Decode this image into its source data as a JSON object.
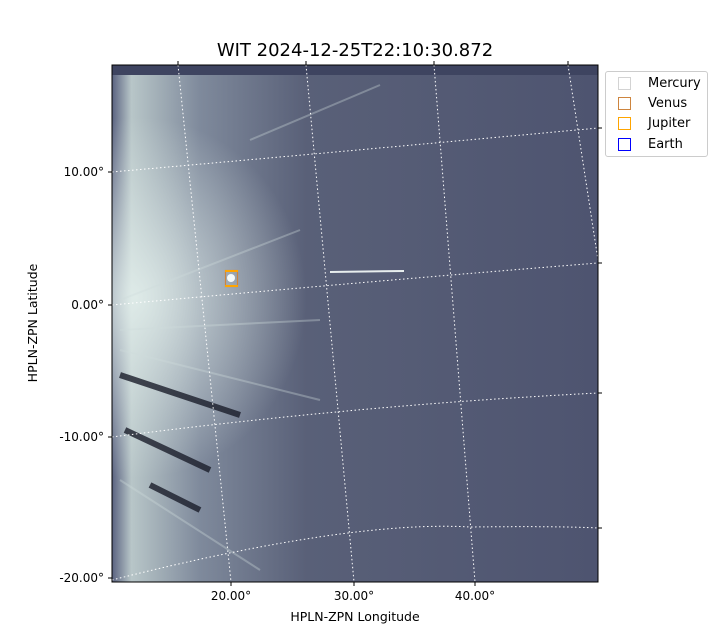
{
  "chart_data": {
    "type": "heatmap",
    "title": "WIT 2024-12-25T22:10:30.872",
    "xlabel": "HPLN-ZPN Longitude",
    "ylabel": "HPLN-ZPN Latitude",
    "x_ticks": [
      "20.00°",
      "30.00°",
      "40.00°"
    ],
    "y_ticks": [
      "10.00°",
      "0.00°",
      "-10.00°",
      "-20.00°"
    ],
    "grid": true,
    "colormap": "gray-blue",
    "legend_placement": "outside-right",
    "legend": [
      {
        "name": "Mercury",
        "color": "#d3d3d3"
      },
      {
        "name": "Venus",
        "color": "#cd853f"
      },
      {
        "name": "Jupiter",
        "color": "#ffa500"
      },
      {
        "name": "Earth",
        "color": "#0000ff"
      }
    ],
    "markers": [
      {
        "name": "Venus",
        "lon": 20.0,
        "lat": 2.0
      }
    ]
  }
}
